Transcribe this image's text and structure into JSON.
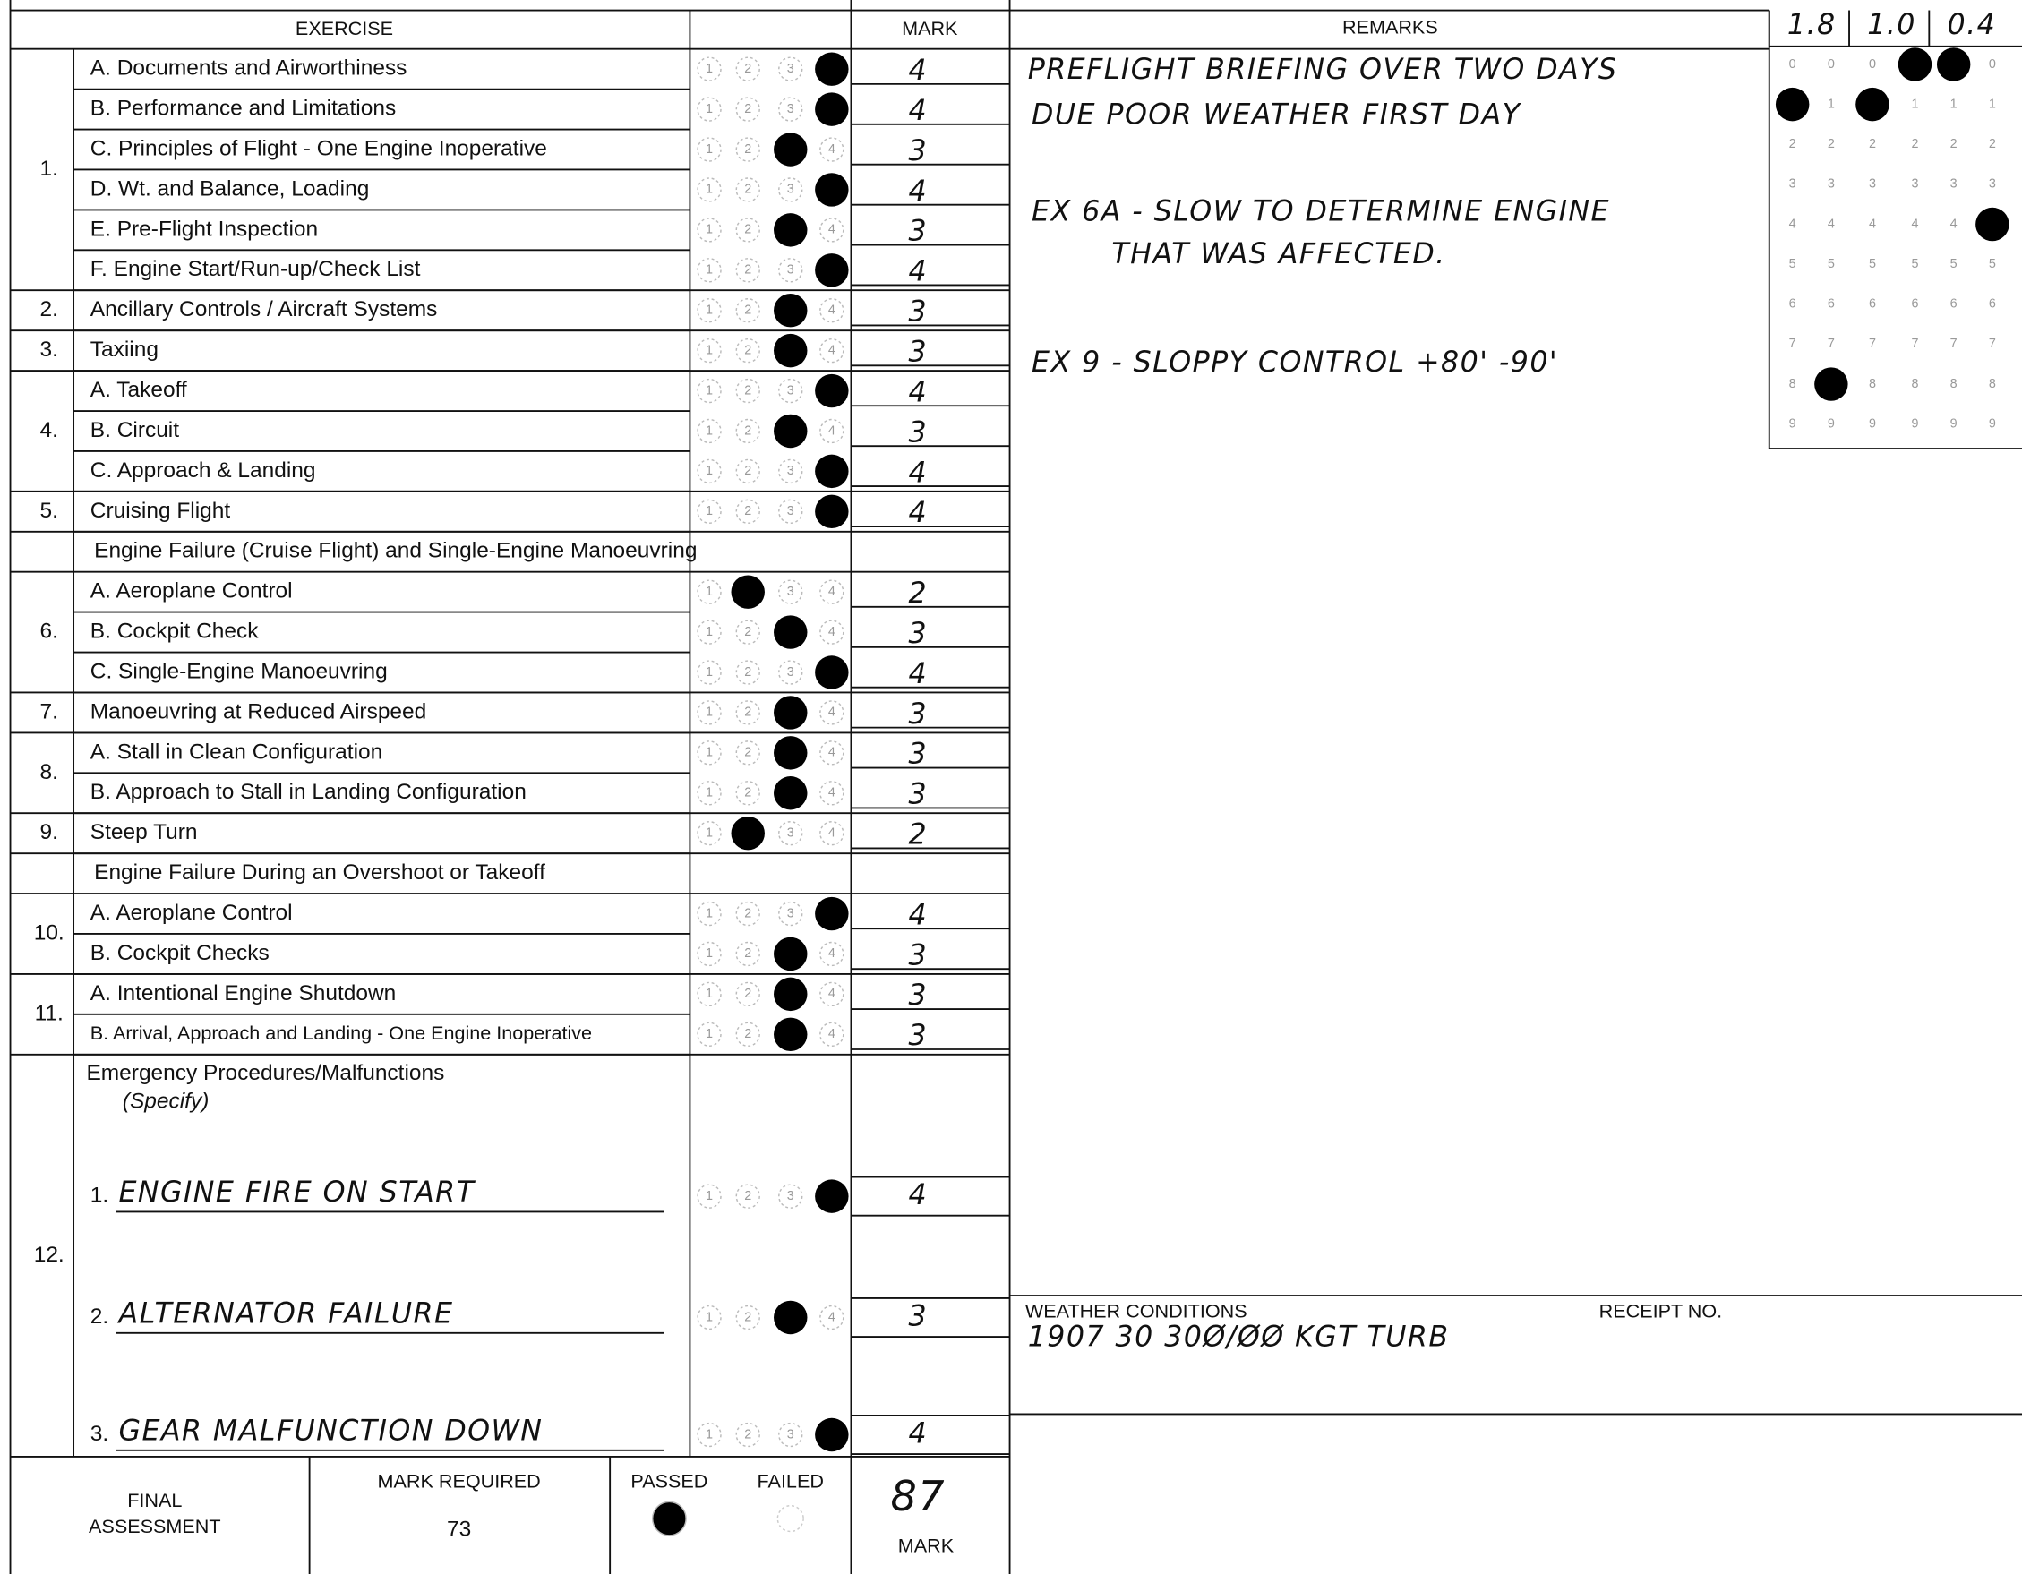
{
  "header": {
    "exercise": "EXERCISE",
    "mark": "MARK",
    "remarks": "REMARKS",
    "scores": [
      "1.8",
      "1.0",
      "0.4"
    ]
  },
  "bubble_labels": [
    "1",
    "2",
    "3",
    "4"
  ],
  "grid_digits": [
    "0",
    "1",
    "2",
    "3",
    "4",
    "5",
    "6",
    "7",
    "8",
    "9"
  ],
  "exercises": [
    {
      "num": "1.",
      "items": [
        {
          "label": "A. Documents and Airworthiness",
          "mark": 4
        },
        {
          "label": "B. Performance and Limitations",
          "mark": 4
        },
        {
          "label": "C. Principles of Flight - One Engine Inoperative",
          "mark": 3
        },
        {
          "label": "D. Wt. and Balance, Loading",
          "mark": 4
        },
        {
          "label": "E. Pre-Flight Inspection",
          "mark": 3
        },
        {
          "label": "F. Engine Start/Run-up/Check List",
          "mark": 4
        }
      ]
    },
    {
      "num": "2.",
      "items": [
        {
          "label": "Ancillary Controls / Aircraft Systems",
          "mark": 3
        }
      ]
    },
    {
      "num": "3.",
      "items": [
        {
          "label": "Taxiing",
          "mark": 3
        }
      ]
    },
    {
      "num": "4.",
      "items": [
        {
          "label": "A. Takeoff",
          "mark": 4
        },
        {
          "label": "B. Circuit",
          "mark": 3
        },
        {
          "label": "C. Approach & Landing",
          "mark": 4
        }
      ]
    },
    {
      "num": "5.",
      "items": [
        {
          "label": "Cruising Flight",
          "mark": 4
        }
      ]
    },
    {
      "section": "Engine Failure (Cruise Flight) and Single-Engine Manoeuvring"
    },
    {
      "num": "6.",
      "items": [
        {
          "label": "A. Aeroplane Control",
          "mark": 2
        },
        {
          "label": "B. Cockpit Check",
          "mark": 3
        },
        {
          "label": "C. Single-Engine Manoeuvring",
          "mark": 4
        }
      ]
    },
    {
      "num": "7.",
      "items": [
        {
          "label": "Manoeuvring at Reduced Airspeed",
          "mark": 3
        }
      ]
    },
    {
      "num": "8.",
      "items": [
        {
          "label": "A. Stall in Clean Configuration",
          "mark": 3
        },
        {
          "label": "B. Approach to Stall in Landing Configuration",
          "mark": 3
        }
      ]
    },
    {
      "num": "9.",
      "items": [
        {
          "label": "Steep Turn",
          "mark": 2
        }
      ]
    },
    {
      "section": "Engine Failure During an Overshoot or Takeoff"
    },
    {
      "num": "10.",
      "items": [
        {
          "label": "A. Aeroplane Control",
          "mark": 4
        },
        {
          "label": "B. Cockpit Checks",
          "mark": 3
        }
      ]
    },
    {
      "num": "11.",
      "items": [
        {
          "label": "A. Intentional Engine Shutdown",
          "mark": 3
        },
        {
          "label": "B. Arrival, Approach and Landing - One Engine Inoperative",
          "mark": 3
        }
      ]
    },
    {
      "num": "12.",
      "title": "Emergency Procedures/Malfunctions",
      "subtitle": "(Specify)",
      "items": [
        {
          "prefix": "1.",
          "label": "ENGINE FIRE ON START",
          "mark": 4
        },
        {
          "prefix": "2.",
          "label": "ALTERNATOR FAILURE",
          "mark": 3
        },
        {
          "prefix": "3.",
          "label": "GEAR MALFUNCTION DOWN",
          "mark": 4
        }
      ]
    }
  ],
  "remarks": [
    "PREFLIGHT BRIEFING OVER TWO DAYS",
    "DUE POOR WEATHER FIRST DAY",
    "EX 6A - SLOW TO DETERMINE ENGINE",
    "THAT WAS AFFECTED.",
    "EX 9 - SLOPPY CONTROL +80' -90'"
  ],
  "weather": {
    "label": "WEATHER CONDITIONS",
    "value": "1907 30 30Ø/ØØ KGT TURB",
    "receipt_label": "RECEIPT NO."
  },
  "final": {
    "title": [
      "FINAL",
      "ASSESSMENT"
    ],
    "required_label": "MARK REQUIRED",
    "required": 73,
    "passed_label": "PASSED",
    "failed_label": "FAILED",
    "passed_marked": true,
    "mark": 87,
    "mark_label": "MARK"
  }
}
